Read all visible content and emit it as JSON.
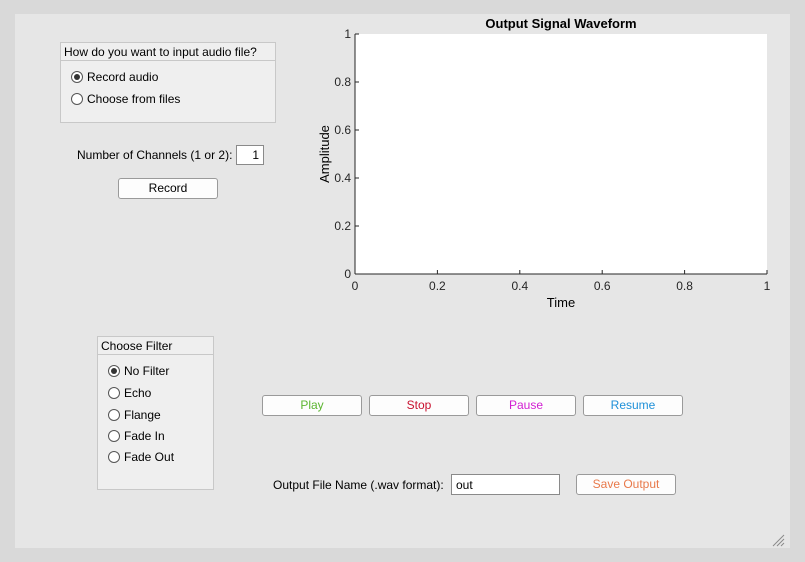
{
  "input_group": {
    "title": "How do you want to input audio file?",
    "options": [
      {
        "label": "Record audio",
        "selected": true
      },
      {
        "label": "Choose from files",
        "selected": false
      }
    ]
  },
  "channels": {
    "label": "Number of Channels (1 or 2):",
    "value": "1"
  },
  "record_button": "Record",
  "chart_data": {
    "type": "line",
    "title": "Output Signal Waveform",
    "xlabel": "Time",
    "ylabel": "Amplitude",
    "xlim": [
      0,
      1
    ],
    "ylim": [
      0,
      1
    ],
    "xticks": [
      "0",
      "0.2",
      "0.4",
      "0.6",
      "0.8",
      "1"
    ],
    "yticks": [
      "0",
      "0.2",
      "0.4",
      "0.6",
      "0.8",
      "1"
    ],
    "series": []
  },
  "filter_group": {
    "title": "Choose Filter",
    "options": [
      {
        "label": "No Filter",
        "selected": true
      },
      {
        "label": "Echo",
        "selected": false
      },
      {
        "label": "Flange",
        "selected": false
      },
      {
        "label": "Fade In",
        "selected": false
      },
      {
        "label": "Fade Out",
        "selected": false
      }
    ]
  },
  "playback": {
    "play": {
      "label": "Play",
      "color": "#5cb531"
    },
    "stop": {
      "label": "Stop",
      "color": "#c8102e"
    },
    "pause": {
      "label": "Pause",
      "color": "#d21fd2"
    },
    "resume": {
      "label": "Resume",
      "color": "#1e90d8"
    }
  },
  "output": {
    "label": "Output File Name (.wav format):",
    "value": "out",
    "save_label": "Save Output",
    "save_color": "#e8794a"
  }
}
